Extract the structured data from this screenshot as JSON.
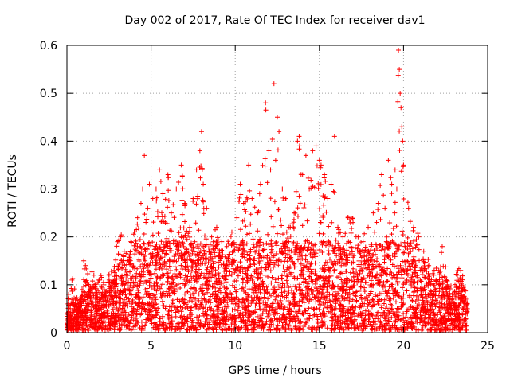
{
  "chart_data": {
    "type": "scatter",
    "title": "Day 002 of 2017, Rate Of TEC Index for receiver dav1",
    "xlabel": "GPS time / hours",
    "ylabel": "ROTI / TECUs",
    "xlim": [
      0,
      25
    ],
    "ylim": [
      0,
      0.6
    ],
    "xticks": [
      0,
      5,
      10,
      15,
      20,
      25
    ],
    "yticks": [
      0,
      0.1,
      0.2,
      0.3,
      0.4,
      0.5,
      0.6
    ],
    "xtick_labels": [
      "0",
      "5",
      "10",
      "15",
      "20",
      "25"
    ],
    "ytick_labels": [
      "0",
      "0.1",
      "0.2",
      "0.3",
      "0.4",
      "0.5",
      "0.6"
    ],
    "grid": true,
    "marker": "+",
    "color": "#ff0000",
    "series": [
      {
        "name": "ROTI",
        "points": [
          [
            0.0,
            0.02
          ],
          [
            0.1,
            0.08
          ],
          [
            0.2,
            0.05
          ],
          [
            0.3,
            0.11
          ],
          [
            0.5,
            0.07
          ],
          [
            0.7,
            0.06
          ],
          [
            0.9,
            0.09
          ],
          [
            1.0,
            0.15
          ],
          [
            1.1,
            0.14
          ],
          [
            1.3,
            0.1
          ],
          [
            1.6,
            0.12
          ],
          [
            1.9,
            0.11
          ],
          [
            2.2,
            0.1
          ],
          [
            2.5,
            0.12
          ],
          [
            2.8,
            0.13
          ],
          [
            3.0,
            0.19
          ],
          [
            3.2,
            0.2
          ],
          [
            3.4,
            0.17
          ],
          [
            3.6,
            0.15
          ],
          [
            3.8,
            0.19
          ],
          [
            4.0,
            0.21
          ],
          [
            4.2,
            0.24
          ],
          [
            4.4,
            0.27
          ],
          [
            4.5,
            0.3
          ],
          [
            4.6,
            0.37
          ],
          [
            4.8,
            0.26
          ],
          [
            4.9,
            0.31
          ],
          [
            5.1,
            0.28
          ],
          [
            5.3,
            0.3
          ],
          [
            5.5,
            0.34
          ],
          [
            5.7,
            0.29
          ],
          [
            6.0,
            0.33
          ],
          [
            6.2,
            0.25
          ],
          [
            6.5,
            0.3
          ],
          [
            6.8,
            0.35
          ],
          [
            7.0,
            0.27
          ],
          [
            7.3,
            0.22
          ],
          [
            7.5,
            0.28
          ],
          [
            7.7,
            0.34
          ],
          [
            7.9,
            0.38
          ],
          [
            8.0,
            0.42
          ],
          [
            8.1,
            0.31
          ],
          [
            8.3,
            0.26
          ],
          [
            8.6,
            0.2
          ],
          [
            8.9,
            0.22
          ],
          [
            9.2,
            0.19
          ],
          [
            9.5,
            0.18
          ],
          [
            9.8,
            0.21
          ],
          [
            10.1,
            0.24
          ],
          [
            10.3,
            0.31
          ],
          [
            10.5,
            0.27
          ],
          [
            10.8,
            0.35
          ],
          [
            11.0,
            0.28
          ],
          [
            11.3,
            0.25
          ],
          [
            11.5,
            0.31
          ],
          [
            11.8,
            0.48
          ],
          [
            12.0,
            0.38
          ],
          [
            12.1,
            0.34
          ],
          [
            12.3,
            0.52
          ],
          [
            12.4,
            0.36
          ],
          [
            12.5,
            0.45
          ],
          [
            12.6,
            0.42
          ],
          [
            12.8,
            0.3
          ],
          [
            13.0,
            0.28
          ],
          [
            13.2,
            0.22
          ],
          [
            13.5,
            0.25
          ],
          [
            13.7,
            0.4
          ],
          [
            13.8,
            0.41
          ],
          [
            14.0,
            0.33
          ],
          [
            14.2,
            0.37
          ],
          [
            14.4,
            0.3
          ],
          [
            14.6,
            0.38
          ],
          [
            14.8,
            0.39
          ],
          [
            15.0,
            0.36
          ],
          [
            15.1,
            0.35
          ],
          [
            15.3,
            0.33
          ],
          [
            15.5,
            0.28
          ],
          [
            15.7,
            0.31
          ],
          [
            15.9,
            0.41
          ],
          [
            16.1,
            0.22
          ],
          [
            16.4,
            0.2
          ],
          [
            16.7,
            0.24
          ],
          [
            17.0,
            0.23
          ],
          [
            17.3,
            0.2
          ],
          [
            17.6,
            0.19
          ],
          [
            17.9,
            0.22
          ],
          [
            18.2,
            0.25
          ],
          [
            18.5,
            0.27
          ],
          [
            18.7,
            0.33
          ],
          [
            18.9,
            0.26
          ],
          [
            19.1,
            0.36
          ],
          [
            19.3,
            0.31
          ],
          [
            19.5,
            0.34
          ],
          [
            19.6,
            0.3
          ],
          [
            19.7,
            0.59
          ],
          [
            19.75,
            0.55
          ],
          [
            19.8,
            0.5
          ],
          [
            19.85,
            0.47
          ],
          [
            19.9,
            0.43
          ],
          [
            19.95,
            0.4
          ],
          [
            20.0,
            0.35
          ],
          [
            20.3,
            0.26
          ],
          [
            20.6,
            0.22
          ],
          [
            20.9,
            0.2
          ],
          [
            21.2,
            0.17
          ],
          [
            21.5,
            0.14
          ],
          [
            21.8,
            0.12
          ],
          [
            22.1,
            0.13
          ],
          [
            22.3,
            0.18
          ],
          [
            22.6,
            0.1
          ],
          [
            22.9,
            0.08
          ],
          [
            23.2,
            0.12
          ],
          [
            23.4,
            0.13
          ],
          [
            23.6,
            0.09
          ],
          [
            23.7,
            0.07
          ],
          [
            23.8,
            0.05
          ]
        ],
        "density_note": "dense band of points between 0.0 and ~0.2 across 0–23.8 h"
      }
    ]
  }
}
